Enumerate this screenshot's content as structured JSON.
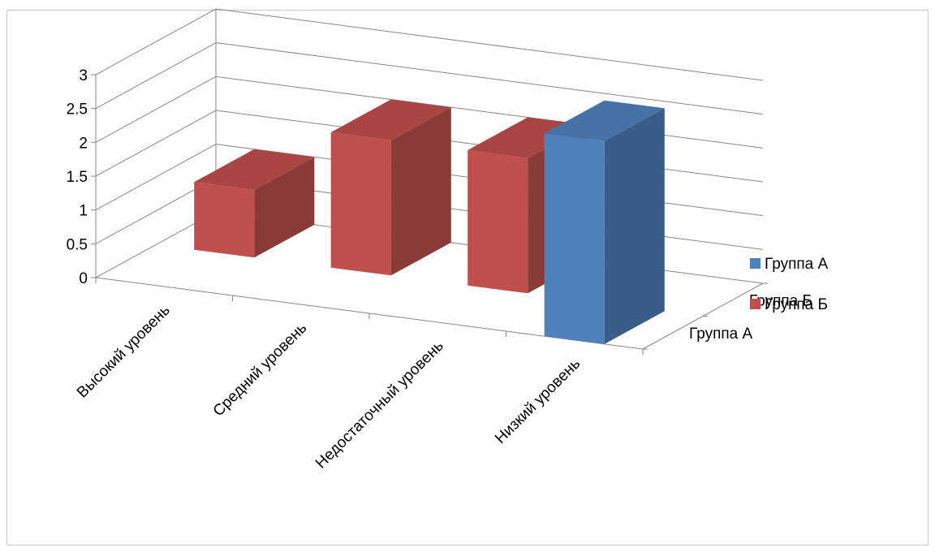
{
  "chart_data": {
    "type": "bar",
    "title": "",
    "xlabel": "",
    "ylabel": "",
    "categories": [
      "Высокий уровень",
      "Средний уровень",
      "Недостаточный уровень",
      "Низкий уровень"
    ],
    "depth_categories": [
      "Группа А",
      "Группа Б"
    ],
    "series": [
      {
        "name": "Группа А",
        "values": [
          0,
          0,
          0,
          3
        ],
        "color": "#4F81BD"
      },
      {
        "name": "Группа Б",
        "values": [
          1,
          2,
          2,
          0
        ],
        "color": "#C0504D"
      }
    ],
    "y_ticks": [
      "0",
      "0.5",
      "1",
      "1.5",
      "2",
      "2.5",
      "3"
    ],
    "ylim": [
      0,
      3
    ],
    "grid": true,
    "legend_position": "right",
    "style": "3d-column"
  }
}
